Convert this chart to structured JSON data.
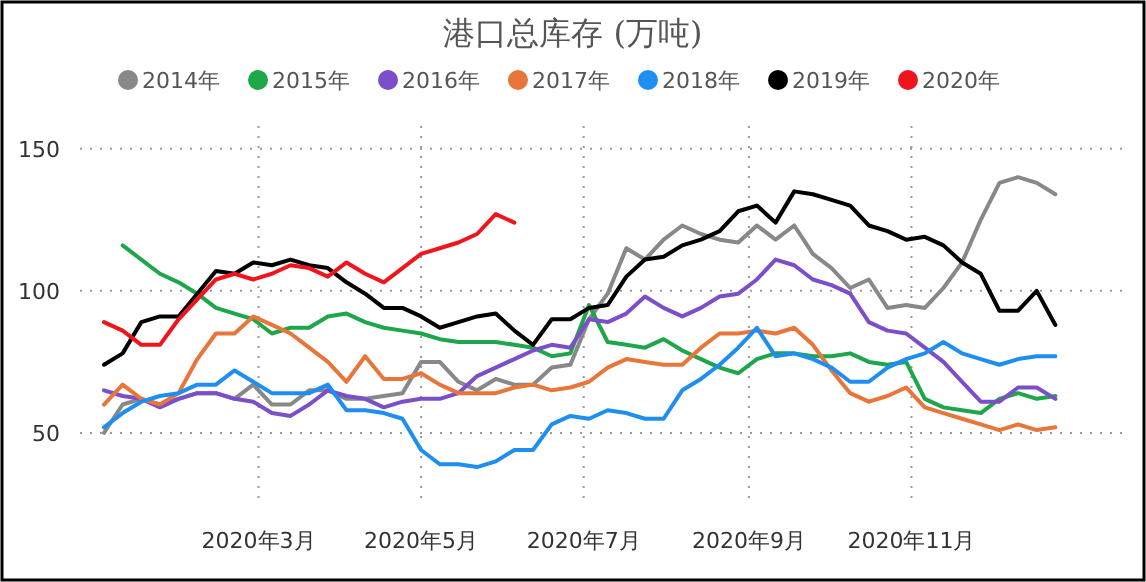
{
  "chart_data": {
    "type": "line",
    "title": "港口总库存 (万吨)",
    "x": [
      "2020-01-03",
      "2020-01-10",
      "2020-01-17",
      "2020-01-24",
      "2020-01-31",
      "2020-02-07",
      "2020-02-14",
      "2020-02-21",
      "2020-02-28",
      "2020-03-06",
      "2020-03-13",
      "2020-03-20",
      "2020-03-27",
      "2020-04-03",
      "2020-04-10",
      "2020-04-17",
      "2020-04-24",
      "2020-05-01",
      "2020-05-08",
      "2020-05-15",
      "2020-05-22",
      "2020-05-29",
      "2020-06-05",
      "2020-06-12",
      "2020-06-19",
      "2020-06-26",
      "2020-07-03",
      "2020-07-10",
      "2020-07-17",
      "2020-07-24",
      "2020-07-31",
      "2020-08-07",
      "2020-08-14",
      "2020-08-21",
      "2020-08-28",
      "2020-09-04",
      "2020-09-11",
      "2020-09-18",
      "2020-09-25",
      "2020-10-02",
      "2020-10-09",
      "2020-10-16",
      "2020-10-23",
      "2020-10-30",
      "2020-11-06",
      "2020-11-13",
      "2020-11-20",
      "2020-11-27",
      "2020-12-04",
      "2020-12-11",
      "2020-12-18",
      "2020-12-25"
    ],
    "series": [
      {
        "name": "2014年",
        "color": "#888888",
        "values": [
          50,
          60,
          62,
          60,
          62,
          64,
          64,
          62,
          67,
          60,
          60,
          65,
          65,
          62,
          62,
          63,
          64,
          75,
          75,
          68,
          65,
          69,
          67,
          67,
          73,
          74,
          90,
          99,
          115,
          111,
          118,
          123,
          120,
          118,
          117,
          123,
          118,
          123,
          113,
          108,
          101,
          104,
          94,
          95,
          94,
          101,
          110,
          125,
          138,
          140,
          138,
          134
        ]
      },
      {
        "name": "2015年",
        "color": "#1ea64a",
        "values": [
          null,
          116,
          111,
          106,
          103,
          99,
          94,
          92,
          90,
          85,
          87,
          87,
          91,
          92,
          89,
          87,
          86,
          85,
          83,
          82,
          82,
          82,
          81,
          80,
          77,
          78,
          95,
          82,
          81,
          80,
          83,
          79,
          76,
          73,
          71,
          76,
          78,
          78,
          77,
          77,
          78,
          75,
          74,
          75,
          62,
          59,
          58,
          57,
          62,
          64,
          62,
          63
        ]
      },
      {
        "name": "2016年",
        "color": "#7b4fc9",
        "values": [
          65,
          63,
          62,
          59,
          62,
          64,
          64,
          62,
          61,
          57,
          56,
          60,
          65,
          63,
          62,
          59,
          61,
          62,
          62,
          64,
          70,
          73,
          76,
          79,
          81,
          80,
          90,
          89,
          92,
          98,
          94,
          91,
          94,
          98,
          99,
          104,
          111,
          109,
          104,
          102,
          99,
          89,
          86,
          85,
          80,
          75,
          68,
          61,
          61,
          66,
          66,
          62
        ]
      },
      {
        "name": "2017年",
        "color": "#e8753a",
        "values": [
          60,
          67,
          62,
          60,
          64,
          76,
          85,
          85,
          91,
          88,
          85,
          80,
          75,
          68,
          77,
          69,
          69,
          71,
          67,
          64,
          64,
          64,
          66,
          67,
          65,
          66,
          68,
          73,
          76,
          75,
          74,
          74,
          80,
          85,
          85,
          86,
          85,
          87,
          81,
          72,
          64,
          61,
          63,
          66,
          59,
          57,
          55,
          53,
          51,
          53,
          51,
          52
        ]
      },
      {
        "name": "2018年",
        "color": "#1e8ff0",
        "values": [
          52,
          57,
          61,
          63,
          64,
          67,
          67,
          72,
          68,
          64,
          64,
          64,
          67,
          58,
          58,
          57,
          55,
          44,
          39,
          39,
          38,
          40,
          44,
          44,
          53,
          56,
          55,
          58,
          57,
          55,
          55,
          65,
          69,
          74,
          80,
          87,
          77,
          78,
          76,
          73,
          68,
          68,
          73,
          76,
          78,
          82,
          78,
          76,
          74,
          76,
          77,
          77
        ]
      },
      {
        "name": "2019年",
        "color": "#000000",
        "values": [
          74,
          78,
          89,
          91,
          91,
          99,
          107,
          106,
          110,
          109,
          111,
          109,
          108,
          103,
          99,
          94,
          94,
          91,
          87,
          89,
          91,
          92,
          86,
          81,
          90,
          90,
          94,
          95,
          105,
          111,
          112,
          116,
          118,
          121,
          128,
          130,
          124,
          135,
          134,
          132,
          130,
          123,
          121,
          118,
          119,
          116,
          110,
          106,
          93,
          93,
          100,
          88
        ]
      },
      {
        "name": "2020年",
        "color": "#f0151c",
        "values": [
          89,
          86,
          81,
          81,
          90,
          97,
          104,
          106,
          104,
          106,
          109,
          108,
          105,
          110,
          106,
          103,
          108,
          113,
          115,
          117,
          120,
          127,
          124,
          null,
          null,
          null,
          null,
          null,
          null,
          null,
          null,
          null,
          null,
          null,
          null,
          null,
          null,
          null,
          null,
          null,
          null,
          null,
          null,
          null,
          null,
          null,
          null,
          null,
          null,
          null,
          null,
          null
        ]
      }
    ],
    "xlim": [
      "2019-12-25",
      "2021-01-22"
    ],
    "xticks": [
      {
        "value": "2020-03-01",
        "label": "2020年3月"
      },
      {
        "value": "2020-05-01",
        "label": "2020年5月"
      },
      {
        "value": "2020-07-01",
        "label": "2020年7月"
      },
      {
        "value": "2020-09-01",
        "label": "2020年9月"
      },
      {
        "value": "2020-11-01",
        "label": "2020年11月"
      }
    ],
    "ylim": [
      25,
      158
    ],
    "yticks": [
      50,
      100,
      150
    ],
    "grid": true,
    "legend": "top",
    "marker": "none",
    "line_style": "solid"
  }
}
